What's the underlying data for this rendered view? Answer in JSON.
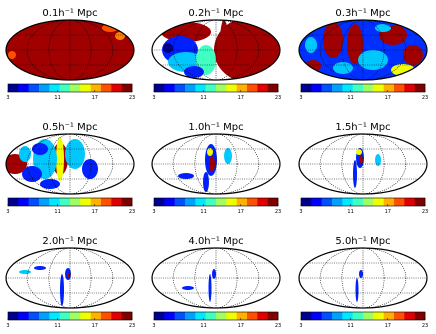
{
  "chart_data": [
    {
      "type": "skymap",
      "title": "0.1h⁻¹ Mpc",
      "clim": [
        3,
        23
      ],
      "cticks": [
        3,
        11,
        17,
        23
      ]
    },
    {
      "type": "skymap",
      "title": "0.2h⁻¹ Mpc",
      "clim": [
        3,
        23
      ],
      "cticks": [
        3,
        11,
        17,
        23
      ]
    },
    {
      "type": "skymap",
      "title": "0.3h⁻¹ Mpc",
      "clim": [
        3,
        23
      ],
      "cticks": [
        3,
        11,
        17,
        23
      ]
    },
    {
      "type": "skymap",
      "title": "0.5h⁻¹ Mpc",
      "clim": [
        3,
        23
      ],
      "cticks": [
        3,
        11,
        17,
        23
      ]
    },
    {
      "type": "skymap",
      "title": "1.0h⁻¹ Mpc",
      "clim": [
        3,
        23
      ],
      "cticks": [
        3,
        11,
        17,
        23
      ]
    },
    {
      "type": "skymap",
      "title": "1.5h⁻¹ Mpc",
      "clim": [
        3,
        23
      ],
      "cticks": [
        3,
        11,
        17,
        23
      ]
    },
    {
      "type": "skymap",
      "title": "2.0h⁻¹ Mpc",
      "clim": [
        3,
        23
      ],
      "cticks": [
        3,
        11,
        17,
        23
      ]
    },
    {
      "type": "skymap",
      "title": "4.0h⁻¹ Mpc",
      "clim": [
        3,
        23
      ],
      "cticks": [
        3,
        11,
        17,
        23
      ]
    },
    {
      "type": "skymap",
      "title": "5.0h⁻¹ Mpc",
      "clim": [
        3,
        23
      ],
      "cticks": [
        3,
        11,
        17,
        23
      ]
    }
  ]
}
